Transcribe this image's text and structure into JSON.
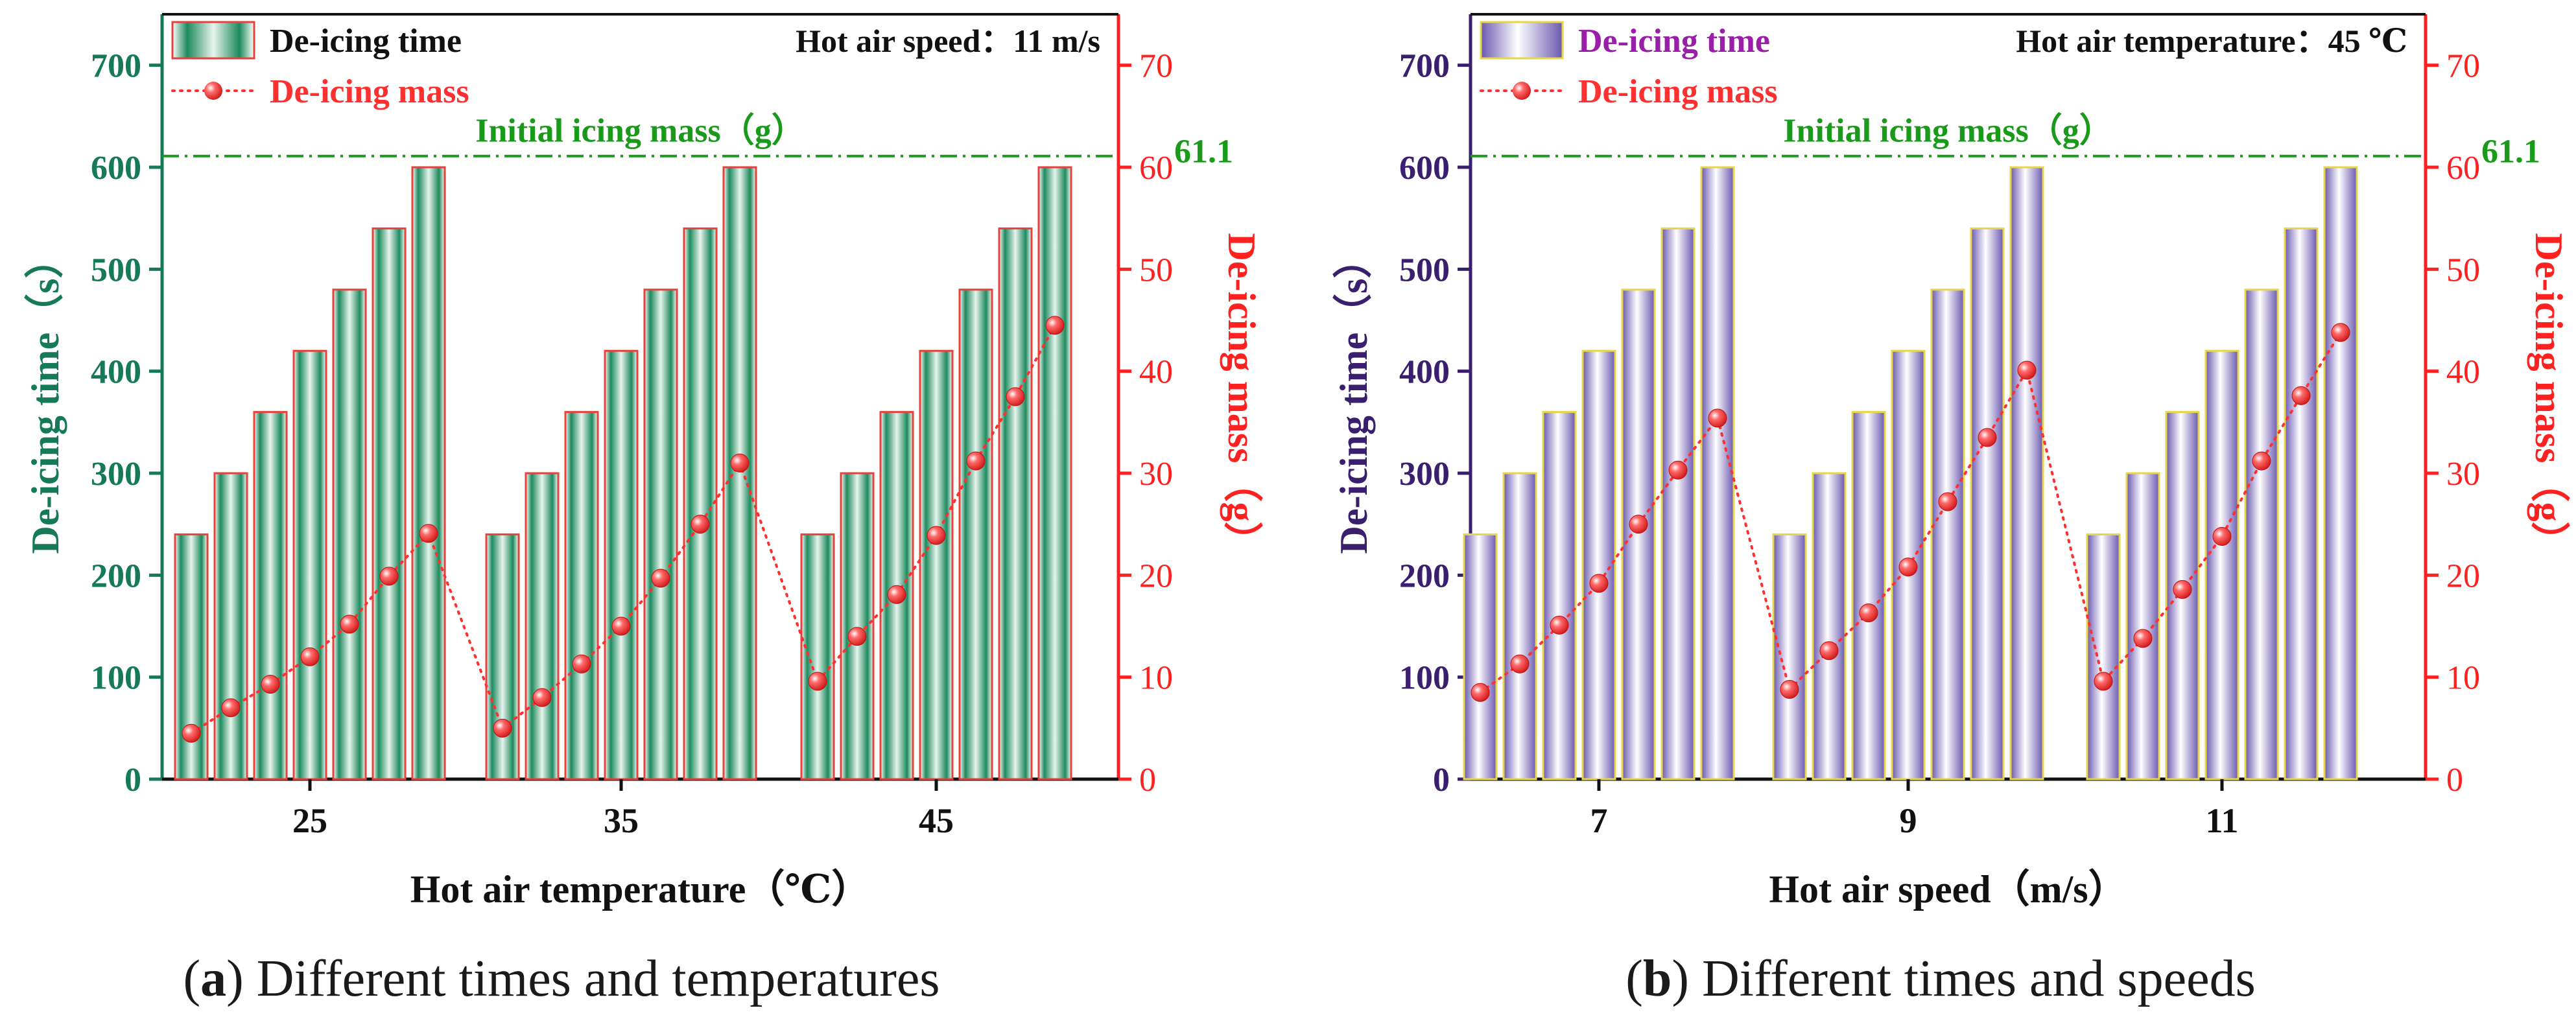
{
  "chart_data": [
    {
      "id": "a",
      "type": "bar+line",
      "caption_letter": "a",
      "caption_text": ") Different times and temperatures",
      "xlabel": "Hot air temperature（℃）",
      "ylabel_left": "De-icing time（s）",
      "ylabel_right": "De-icing mass（g）",
      "ylim_left": [
        0,
        750
      ],
      "ylim_right": [
        0,
        75
      ],
      "yticks_left": [
        0,
        100,
        200,
        300,
        400,
        500,
        600,
        700
      ],
      "yticks_right": [
        0,
        10,
        20,
        30,
        40,
        50,
        60,
        70
      ],
      "categories": [
        "25",
        "35",
        "45"
      ],
      "legend": {
        "bar": "De-icing time",
        "line": "De-icing mass"
      },
      "annotation": "Hot air speed：11 m/s",
      "reference_line": {
        "label": "Initial icing mass（g）",
        "value": 61.1,
        "value_label": "61.1"
      },
      "colors": {
        "bar": "#1e8a5e",
        "bar_border": "#e8413c",
        "left_axis": "#157a55",
        "right_axis": "#ff2020",
        "reference": "#1a9a1a",
        "mass": "#ff3030"
      },
      "groups": [
        {
          "category": "25",
          "time_s": [
            240,
            300,
            360,
            420,
            480,
            540,
            600
          ],
          "mass_g": [
            4.5,
            7.0,
            9.3,
            12.0,
            15.2,
            19.9,
            24.1
          ]
        },
        {
          "category": "35",
          "time_s": [
            240,
            300,
            360,
            420,
            480,
            540,
            600
          ],
          "mass_g": [
            5.0,
            8.0,
            11.3,
            15.0,
            19.7,
            25.0,
            31.0
          ]
        },
        {
          "category": "45",
          "time_s": [
            240,
            300,
            360,
            420,
            480,
            540,
            600
          ],
          "mass_g": [
            9.6,
            14.0,
            18.1,
            23.9,
            31.2,
            37.5,
            44.5
          ]
        }
      ]
    },
    {
      "id": "b",
      "type": "bar+line",
      "caption_letter": "b",
      "caption_text": ") Different times and speeds",
      "xlabel": "Hot air speed（m/s）",
      "ylabel_left": "De-icing time（s）",
      "ylabel_right": "De-icing mass（g）",
      "ylim_left": [
        0,
        750
      ],
      "ylim_right": [
        0,
        75
      ],
      "yticks_left": [
        0,
        100,
        200,
        300,
        400,
        500,
        600,
        700
      ],
      "yticks_right": [
        0,
        10,
        20,
        30,
        40,
        50,
        60,
        70
      ],
      "categories": [
        "7",
        "9",
        "11"
      ],
      "legend": {
        "bar": "De-icing time",
        "line": "De-icing mass"
      },
      "annotation": "Hot air temperature：45 ℃",
      "reference_line": {
        "label": "Initial icing mass（g）",
        "value": 61.1,
        "value_label": "61.1"
      },
      "colors": {
        "bar": "#6a58b0",
        "bar_border": "#e8d64a",
        "left_axis": "#3a1f6e",
        "right_axis": "#ff2020",
        "reference": "#1a9a1a",
        "mass": "#ff3030",
        "legend_text_bar": "#9a1fa8"
      },
      "groups": [
        {
          "category": "7",
          "time_s": [
            240,
            300,
            360,
            420,
            480,
            540,
            600
          ],
          "mass_g": [
            8.5,
            11.3,
            15.1,
            19.2,
            25.0,
            30.3,
            35.4
          ]
        },
        {
          "category": "9",
          "time_s": [
            240,
            300,
            360,
            420,
            480,
            540,
            600
          ],
          "mass_g": [
            8.8,
            12.6,
            16.3,
            20.8,
            27.2,
            33.5,
            40.1
          ]
        },
        {
          "category": "11",
          "time_s": [
            240,
            300,
            360,
            420,
            480,
            540,
            600
          ],
          "mass_g": [
            9.6,
            13.8,
            18.6,
            23.8,
            31.2,
            37.6,
            43.8
          ]
        }
      ]
    }
  ]
}
